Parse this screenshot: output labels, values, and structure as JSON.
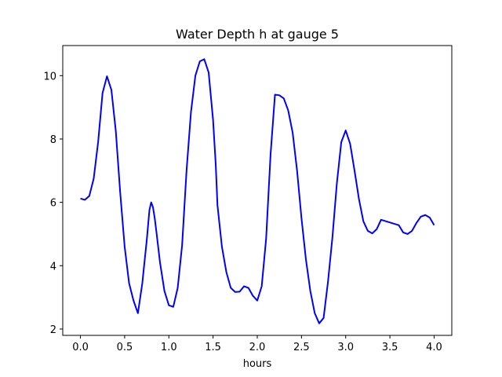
{
  "chart_data": {
    "type": "line",
    "title": "Water Depth h at gauge 5",
    "xlabel": "hours",
    "ylabel": "",
    "xlim": [
      -0.2,
      4.2
    ],
    "ylim": [
      1.8,
      10.95
    ],
    "xticks": [
      0.0,
      0.5,
      1.0,
      1.5,
      2.0,
      2.5,
      3.0,
      3.5,
      4.0
    ],
    "xtick_labels": [
      "0.0",
      "0.5",
      "1.0",
      "1.5",
      "2.0",
      "2.5",
      "3.0",
      "3.5",
      "4.0"
    ],
    "yticks": [
      2,
      4,
      6,
      8,
      10
    ],
    "ytick_labels": [
      "2",
      "4",
      "6",
      "8",
      "10"
    ],
    "grid": false,
    "series": [
      {
        "color": "#0000ff",
        "x": [
          0.0,
          0.05,
          0.1,
          0.15,
          0.2,
          0.25,
          0.3,
          0.35,
          0.4,
          0.45,
          0.5,
          0.55,
          0.6,
          0.65,
          0.7,
          0.72,
          0.75,
          0.78,
          0.8,
          0.82,
          0.84,
          0.86,
          0.9,
          0.95,
          1.0,
          1.05,
          1.1,
          1.15,
          1.2,
          1.25,
          1.3,
          1.35,
          1.4,
          1.45,
          1.5,
          1.53,
          1.55,
          1.6,
          1.65,
          1.7,
          1.75,
          1.8,
          1.85,
          1.9,
          1.95,
          2.0,
          2.05,
          2.1,
          2.15,
          2.2,
          2.25,
          2.3,
          2.35,
          2.4,
          2.45,
          2.5,
          2.55,
          2.6,
          2.65,
          2.7,
          2.75,
          2.8,
          2.85,
          2.9,
          2.95,
          3.0,
          3.05,
          3.1,
          3.15,
          3.2,
          3.25,
          3.3,
          3.35,
          3.4,
          3.45,
          3.5,
          3.55,
          3.6,
          3.65,
          3.7,
          3.75,
          3.8,
          3.85,
          3.9,
          3.95,
          4.0
        ],
        "y": [
          6.12,
          6.08,
          6.2,
          6.75,
          7.9,
          9.45,
          9.98,
          9.55,
          8.25,
          6.3,
          4.6,
          3.45,
          2.9,
          2.5,
          3.45,
          4.0,
          4.8,
          5.75,
          6.0,
          5.85,
          5.5,
          5.05,
          4.1,
          3.2,
          2.75,
          2.7,
          3.3,
          4.65,
          7.0,
          8.85,
          10.0,
          10.45,
          10.52,
          10.1,
          8.6,
          7.2,
          5.9,
          4.6,
          3.8,
          3.3,
          3.17,
          3.18,
          3.35,
          3.3,
          3.05,
          2.9,
          3.35,
          4.85,
          7.5,
          9.4,
          9.38,
          9.28,
          8.9,
          8.2,
          7.0,
          5.5,
          4.2,
          3.2,
          2.5,
          2.18,
          2.35,
          3.5,
          4.9,
          6.6,
          7.9,
          8.27,
          7.85,
          7.0,
          6.1,
          5.4,
          5.1,
          5.02,
          5.15,
          5.45,
          5.6,
          5.55,
          5.28,
          5.0,
          5.0,
          5.0,
          5.0,
          5.0,
          5.0,
          5.0,
          5.0,
          5.0
        ]
      }
    ]
  }
}
